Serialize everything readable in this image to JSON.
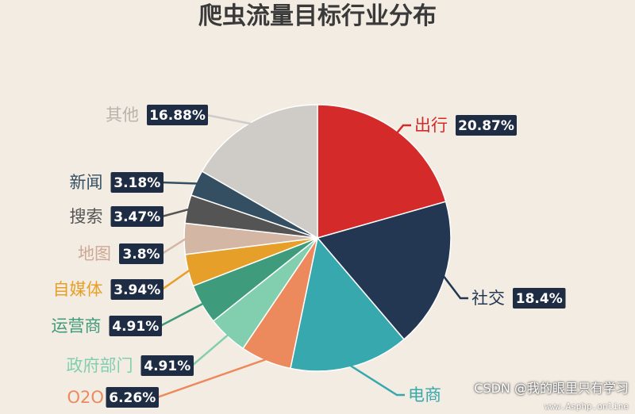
{
  "chart_data": {
    "type": "pie",
    "title": "爬虫流量目标行业分布",
    "slices": [
      {
        "label": "出行",
        "value": 20.87,
        "text": "20.87%",
        "color": "#d42a2a"
      },
      {
        "label": "社交",
        "value": 18.4,
        "text": "18.4%",
        "color": "#233753"
      },
      {
        "label": "电商",
        "value": 14.67,
        "text": "",
        "color": "#37a8ad"
      },
      {
        "label": "O2O",
        "value": 6.26,
        "text": "6.26%",
        "color": "#ec8a5d"
      },
      {
        "label": "政府部门",
        "value": 4.91,
        "text": "4.91%",
        "color": "#82cfb0"
      },
      {
        "label": "运营商",
        "value": 4.91,
        "text": "4.91%",
        "color": "#3e9b7b"
      },
      {
        "label": "自媒体",
        "value": 3.94,
        "text": "3.94%",
        "color": "#e6a02a"
      },
      {
        "label": "地图",
        "value": 3.8,
        "text": "3.8%",
        "color": "#d4b6a4"
      },
      {
        "label": "搜索",
        "value": 3.47,
        "text": "3.47%",
        "color": "#545454"
      },
      {
        "label": "新闻",
        "value": 3.18,
        "text": "3.18%",
        "color": "#344f62"
      },
      {
        "label": "其他",
        "value": 16.88,
        "text": "16.88%",
        "color": "#cfccc8"
      }
    ]
  },
  "watermark": {
    "text": "CSDN @我的眼里只有学习",
    "site": "www.Asphp.online"
  }
}
